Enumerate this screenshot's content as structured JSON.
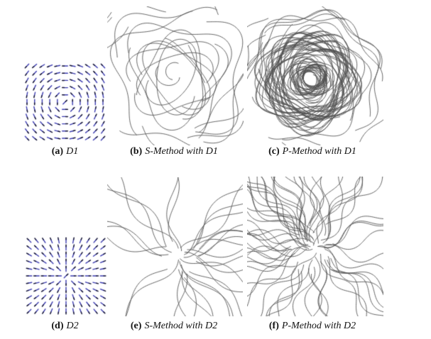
{
  "figure": {
    "background_color": "#ffffff",
    "glyph_color": "#3a3ab0",
    "glyph_tip_color": "#0d0d30",
    "streamline_color": "#505050",
    "caption_color": "#111111"
  },
  "panels": [
    {
      "id": "a",
      "kind": "vector-field-plot",
      "field": "D1",
      "pattern": "vortex",
      "caption_prefix": "(a)",
      "caption_text": "D1"
    },
    {
      "id": "b",
      "kind": "streamline-plot",
      "field": "D1",
      "pattern": "vortex",
      "method": "S",
      "caption_prefix": "(b)",
      "caption_text": "S-Method with D1"
    },
    {
      "id": "c",
      "kind": "streamline-plot",
      "field": "D1",
      "pattern": "vortex",
      "method": "P",
      "caption_prefix": "(c)",
      "caption_text": "P-Method with D1"
    },
    {
      "id": "d",
      "kind": "vector-field-plot",
      "field": "D2",
      "pattern": "radial",
      "caption_prefix": "(d)",
      "caption_text": "D2"
    },
    {
      "id": "e",
      "kind": "streamline-plot",
      "field": "D2",
      "pattern": "radial",
      "method": "S",
      "caption_prefix": "(e)",
      "caption_text": "S-Method with D2"
    },
    {
      "id": "f",
      "kind": "streamline-plot",
      "field": "D2",
      "pattern": "radial",
      "method": "P",
      "caption_prefix": "(f)",
      "caption_text": "P-Method with D2"
    }
  ]
}
